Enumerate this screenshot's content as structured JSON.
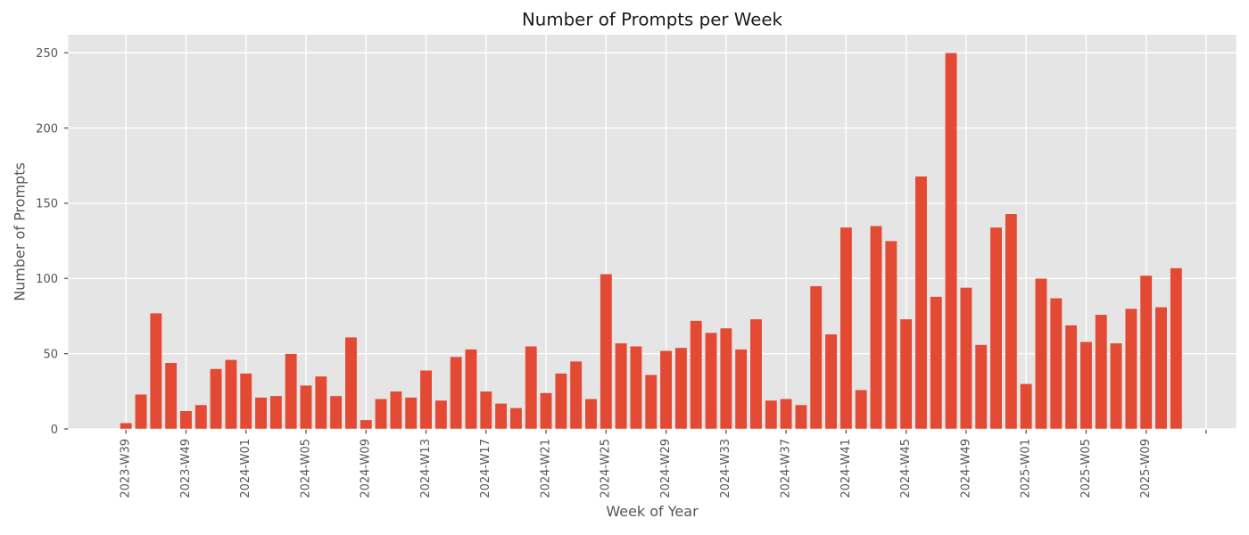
{
  "title": {
    "text": "Number of Prompts per Week",
    "color": "#1b1b1b"
  },
  "x_axis": {
    "label": "Week of Year",
    "label_color": "#555555",
    "tick_color": "#555555",
    "tick_indices": [
      0,
      4,
      8,
      12,
      16,
      20,
      24,
      28,
      32,
      36,
      40,
      44,
      48,
      52,
      56,
      60,
      64,
      68,
      72
    ],
    "tick_labels": [
      "2023-W39",
      "2023-W49",
      "2024-W01",
      "2024-W05",
      "2024-W09",
      "2024-W13",
      "2024-W17",
      "2024-W21",
      "2024-W25",
      "2024-W29",
      "2024-W33",
      "2024-W37",
      "2024-W41",
      "2024-W45",
      "2024-W49",
      "2025-W01",
      "2025-W05",
      "2025-W09",
      ""
    ]
  },
  "y_axis": {
    "label": "Number of Prompts",
    "label_color": "#555555",
    "tick_color": "#555555",
    "ticks": [
      0,
      50,
      100,
      150,
      200,
      250
    ]
  },
  "chart_data": {
    "type": "bar",
    "title": "Number of Prompts per Week",
    "xlabel": "Week of Year",
    "ylabel": "Number of Prompts",
    "categories": [
      "2023-W39",
      "2023-W42",
      "2023-W45",
      "2023-W47",
      "2023-W49",
      "2023-W50",
      "2023-W51",
      "2023-W52",
      "2024-W01",
      "2024-W02",
      "2024-W03",
      "2024-W04",
      "2024-W05",
      "2024-W06",
      "2024-W07",
      "2024-W08",
      "2024-W09",
      "2024-W10",
      "2024-W11",
      "2024-W12",
      "2024-W13",
      "2024-W14",
      "2024-W15",
      "2024-W16",
      "2024-W17",
      "2024-W18",
      "2024-W19",
      "2024-W20",
      "2024-W21",
      "2024-W22",
      "2024-W23",
      "2024-W24",
      "2024-W25",
      "2024-W26",
      "2024-W27",
      "2024-W28",
      "2024-W29",
      "2024-W30",
      "2024-W31",
      "2024-W32",
      "2024-W33",
      "2024-W34",
      "2024-W35",
      "2024-W36",
      "2024-W37",
      "2024-W38",
      "2024-W39",
      "2024-W40",
      "2024-W41",
      "2024-W42",
      "2024-W43",
      "2024-W44",
      "2024-W45",
      "2024-W46",
      "2024-W47",
      "2024-W48",
      "2024-W49",
      "2024-W50",
      "2024-W51",
      "2024-W52",
      "2025-W01",
      "2025-W02",
      "2025-W03",
      "2025-W04",
      "2025-W05",
      "2025-W06",
      "2025-W07",
      "2025-W08",
      "2025-W09",
      "2025-W10",
      "2025-W11"
    ],
    "values": [
      4,
      23,
      77,
      44,
      12,
      16,
      40,
      46,
      37,
      21,
      22,
      50,
      29,
      35,
      22,
      61,
      6,
      20,
      25,
      21,
      39,
      19,
      48,
      53,
      25,
      17,
      14,
      55,
      24,
      37,
      45,
      20,
      103,
      57,
      55,
      36,
      52,
      54,
      72,
      64,
      67,
      53,
      73,
      19,
      20,
      16,
      95,
      63,
      134,
      26,
      135,
      125,
      73,
      168,
      88,
      250,
      94,
      56,
      134,
      143,
      30,
      100,
      87,
      69,
      58,
      76,
      57,
      80,
      102,
      81,
      107
    ],
    "xtick_step": 4,
    "yticks": [
      0,
      50,
      100,
      150,
      200,
      250
    ],
    "ylim": [
      0,
      262
    ],
    "grid": true,
    "legend": false,
    "bar_color": "#E24A33",
    "bar_edge_color": "#EEEEEE",
    "plot_background": "#E5E5E5",
    "grid_color": "#FFFFFF",
    "tick_text_color": "#555555"
  }
}
